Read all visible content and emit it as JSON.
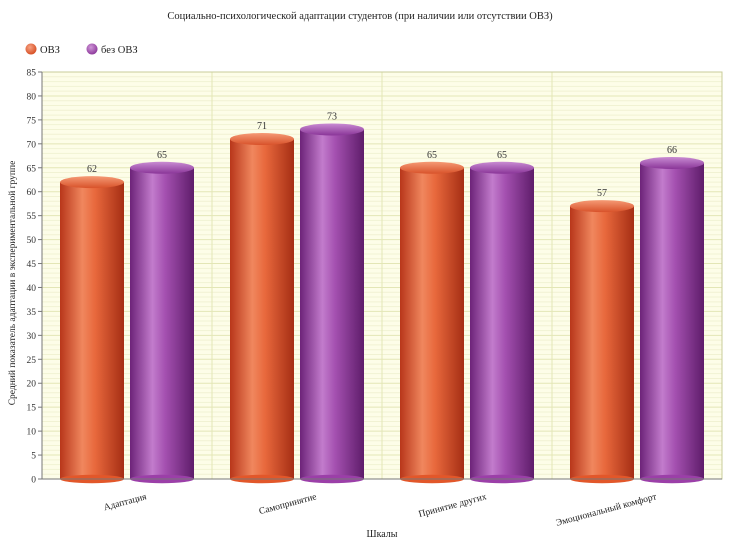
{
  "chart_data": {
    "type": "bar",
    "title": "Социально-психологической адаптации студентов (при наличии или отсутствии ОВЗ)",
    "xlabel": "Шкалы",
    "ylabel": "Средний показатель адаптации в экспериментальной группе",
    "categories": [
      "Адаптация",
      "Самопринятие",
      "Принятие других",
      "Эмоциональный комфорт"
    ],
    "series": [
      {
        "name": "ОВЗ",
        "values": [
          62,
          71,
          65,
          57
        ],
        "color": "#e2572a"
      },
      {
        "name": "без ОВЗ",
        "values": [
          65,
          73,
          65,
          66
        ],
        "color": "#9b3fa8"
      }
    ],
    "ylim": [
      0,
      85
    ],
    "ytick_step": 5,
    "grid": true,
    "legend_position": "top-left",
    "data_labels": true
  }
}
